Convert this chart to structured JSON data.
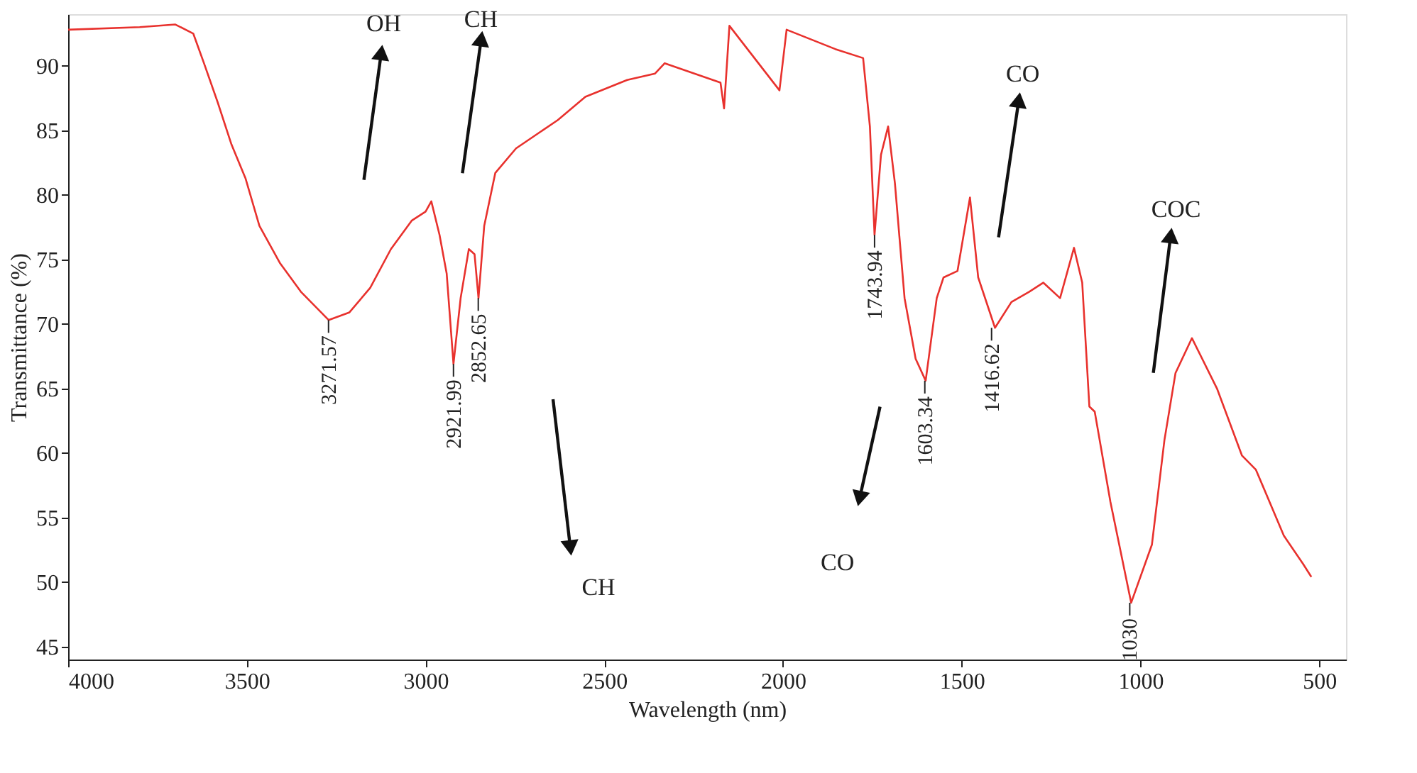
{
  "chart_data": {
    "type": "line",
    "xlabel": "Wavelength (nm)",
    "ylabel": "Transmittance (%)",
    "xlim": [
      4000,
      425
    ],
    "xticks": [
      4000,
      3500,
      3000,
      2500,
      2000,
      1500,
      1000,
      500
    ],
    "ylim": [
      44,
      94
    ],
    "yticks": [
      45,
      50,
      55,
      60,
      65,
      70,
      75,
      80,
      85,
      90
    ],
    "grid": false,
    "marker": "none",
    "line_style": "solid",
    "series": [
      {
        "color": "#e8312d",
        "x": [
          4000,
          3800,
          3700,
          3650,
          3620,
          3582,
          3543,
          3504,
          3465,
          3407,
          3349,
          3271,
          3213,
          3155,
          3097,
          3039,
          3000,
          2984,
          2961,
          2941,
          2922,
          2902,
          2879,
          2863,
          2852,
          2836,
          2805,
          2747,
          2630,
          2553,
          2436,
          2358,
          2331,
          2175,
          2165,
          2150,
          2010,
          1990,
          1854,
          1776,
          1757,
          1744,
          1726,
          1706,
          1687,
          1660,
          1629,
          1601,
          1570,
          1551,
          1512,
          1477,
          1454,
          1407,
          1361,
          1311,
          1272,
          1225,
          1186,
          1163,
          1143,
          1128,
          1084,
          1026,
          968,
          933,
          902,
          856,
          786,
          716,
          677,
          599,
          545,
          522
        ],
        "values": [
          92.8,
          93,
          93.2,
          92.5,
          90.2,
          87.2,
          83.9,
          81.3,
          77.6,
          74.7,
          72.5,
          70.3,
          70.9,
          72.8,
          75.8,
          78,
          78.7,
          79.5,
          76.9,
          73.9,
          66.9,
          72,
          75.8,
          75.4,
          72,
          77.6,
          81.7,
          83.6,
          85.8,
          87.6,
          88.9,
          89.4,
          90.2,
          88.7,
          86.7,
          93.1,
          88.1,
          92.8,
          91.3,
          90.6,
          85.3,
          76.9,
          83.1,
          85.3,
          80.9,
          72,
          67.3,
          65.6,
          72,
          73.6,
          74.1,
          79.8,
          73.6,
          69.7,
          71.7,
          72.5,
          73.2,
          72,
          75.9,
          73.2,
          63.6,
          63.2,
          56.2,
          48.4,
          52.9,
          61,
          66.2,
          68.9,
          65,
          59.8,
          58.7,
          53.6,
          51.4,
          50.4
        ]
      }
    ],
    "annotations": [
      {
        "text": "3271.57",
        "x": 3271.57,
        "y": 70.3
      },
      {
        "text": "2921.99",
        "x": 2921.99,
        "y": 66.9
      },
      {
        "text": "2852.65",
        "x": 2852.65,
        "y": 72
      },
      {
        "text": "1743.94",
        "x": 1743.94,
        "y": 76.9
      },
      {
        "text": "1603.34",
        "x": 1603.34,
        "y": 65.6
      },
      {
        "text": "1416.62",
        "x": 1416.62,
        "y": 69.7
      },
      {
        "text": "1030",
        "x": 1030,
        "y": 48.4
      },
      "OH",
      "CH",
      "CH",
      "CO",
      "CO",
      "COC"
    ]
  }
}
